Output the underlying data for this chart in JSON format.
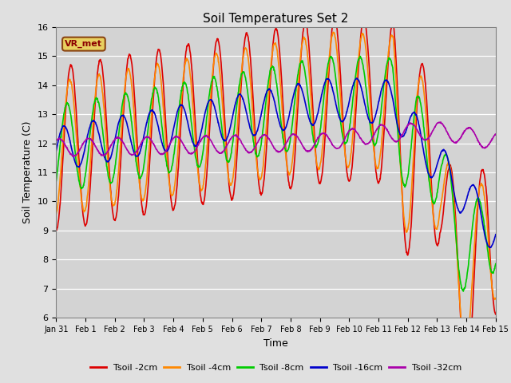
{
  "title": "Soil Temperatures Set 2",
  "xlabel": "Time",
  "ylabel": "Soil Temperature (C)",
  "ylim": [
    6.0,
    16.0
  ],
  "yticks": [
    6.0,
    7.0,
    8.0,
    9.0,
    10.0,
    11.0,
    12.0,
    13.0,
    14.0,
    15.0,
    16.0
  ],
  "background_color": "#e0e0e0",
  "plot_bg_color": "#d3d3d3",
  "legend_label": "VR_met",
  "series_labels": [
    "Tsoil -2cm",
    "Tsoil -4cm",
    "Tsoil -8cm",
    "Tsoil -16cm",
    "Tsoil -32cm"
  ],
  "series_colors": [
    "#dd0000",
    "#ff8800",
    "#00cc00",
    "#0000cc",
    "#aa00aa"
  ],
  "line_width": 1.2,
  "xtick_labels": [
    "Jan 31",
    "Feb 1",
    "Feb 2",
    "Feb 3",
    "Feb 4",
    "Feb 5",
    "Feb 6",
    "Feb 7",
    "Feb 8",
    "Feb 9",
    "Feb 10",
    "Feb 11",
    "Feb 12",
    "Feb 13",
    "Feb 14",
    "Feb 15"
  ],
  "days": 15
}
